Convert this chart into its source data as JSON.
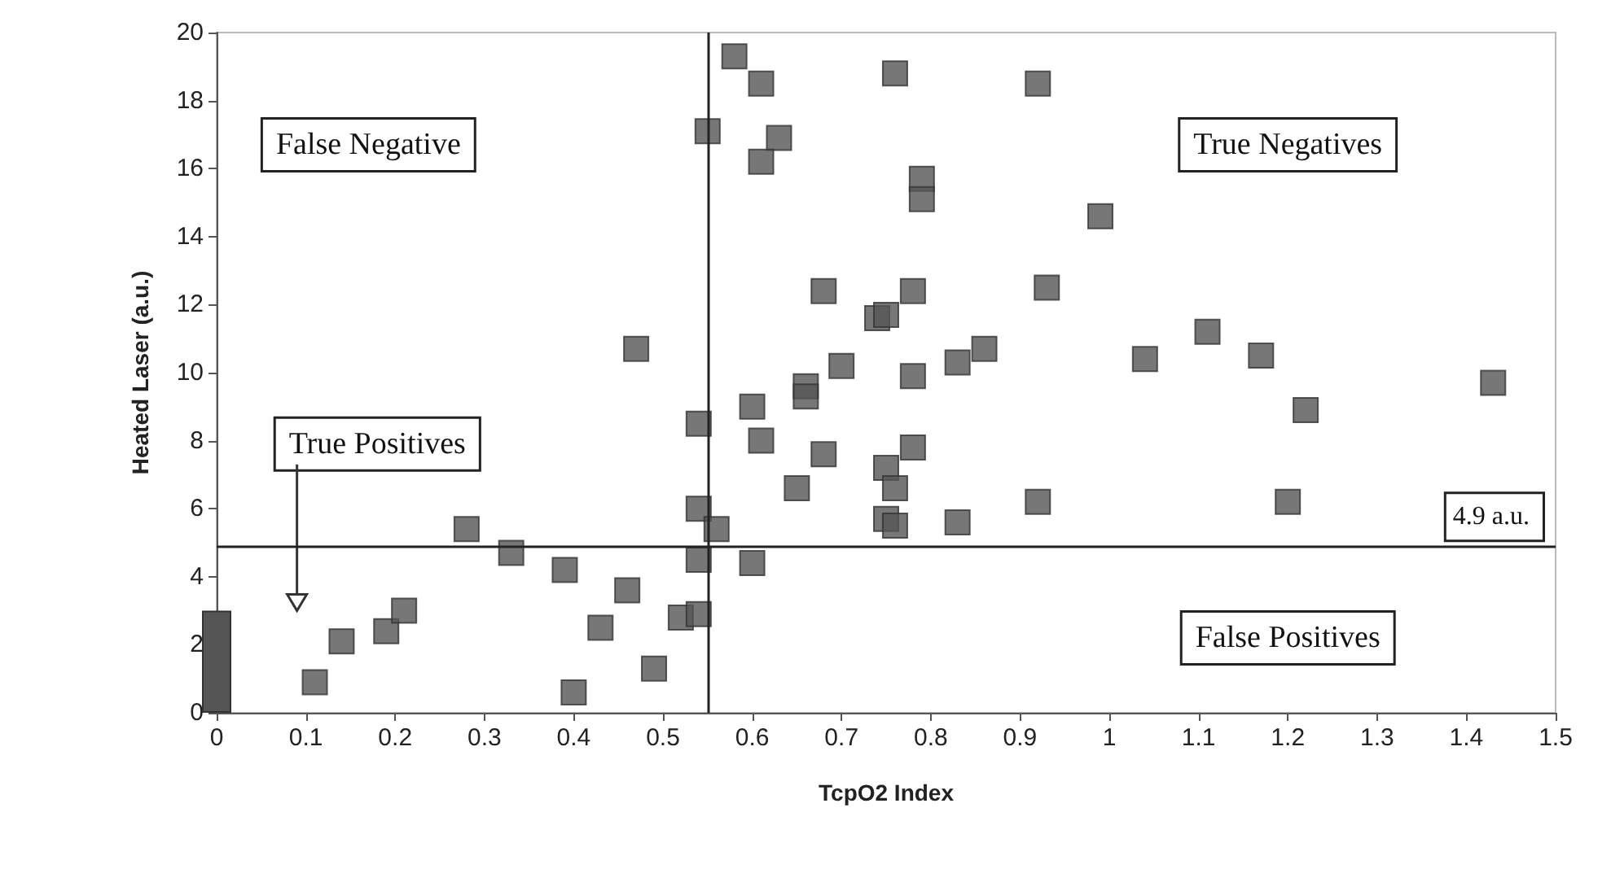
{
  "chart_data": {
    "type": "scatter",
    "xlabel": "TcpO2 Index",
    "ylabel": "Heated Laser (a.u.)",
    "xlim": [
      0,
      1.5
    ],
    "xticks": [
      0,
      0.1,
      0.2,
      0.3,
      0.4,
      0.5,
      0.6,
      0.7,
      0.8,
      0.9,
      1,
      1.1,
      1.2,
      1.3,
      1.4,
      1.5
    ],
    "ylim": [
      0,
      20
    ],
    "yticks": [
      0,
      2,
      4,
      6,
      8,
      10,
      12,
      14,
      16,
      18,
      20
    ],
    "grid": false,
    "marker": "square",
    "series": [
      {
        "type": "bar",
        "color": "#555555",
        "x": [
          0
        ],
        "values": [
          3
        ]
      },
      {
        "color": "#555555",
        "x": [
          0.11,
          0.14,
          0.19,
          0.21,
          0.28,
          0.33,
          0.39,
          0.4,
          0.43,
          0.46,
          0.47,
          0.49,
          0.52,
          0.54,
          0.54,
          0.55,
          0.54,
          0.54,
          0.56,
          0.58,
          0.61,
          0.63,
          0.61,
          0.76,
          0.92,
          0.79,
          0.79,
          0.99,
          0.68,
          0.78,
          0.93,
          0.74,
          0.75,
          0.7,
          0.83,
          0.86,
          1.04,
          0.78,
          0.6,
          0.66,
          0.66,
          0.61,
          0.68,
          0.65,
          0.75,
          0.78,
          0.75,
          0.76,
          0.76,
          0.83,
          0.92,
          0.6,
          1.11,
          1.17,
          1.22,
          1.2,
          1.43
        ],
        "values": [
          0.9,
          2.1,
          2.4,
          3.0,
          5.4,
          4.7,
          4.2,
          0.6,
          2.5,
          3.6,
          10.7,
          1.3,
          2.8,
          2.9,
          8.5,
          17.1,
          6.0,
          4.5,
          5.4,
          19.3,
          18.5,
          16.9,
          16.2,
          18.8,
          18.5,
          15.7,
          15.1,
          14.6,
          12.4,
          12.4,
          12.5,
          11.6,
          11.7,
          10.2,
          10.3,
          10.7,
          10.4,
          9.9,
          9.0,
          9.6,
          9.3,
          8.0,
          7.6,
          6.6,
          7.2,
          7.8,
          5.7,
          5.5,
          6.6,
          5.6,
          6.2,
          4.4,
          11.2,
          10.5,
          8.9,
          6.2,
          9.7
        ]
      }
    ],
    "ref_lines": [
      {
        "axis": "y",
        "value": 4.9,
        "label": "4.9 a.u.",
        "color": "#222222"
      },
      {
        "axis": "x",
        "value": 0.55,
        "color": "#222222"
      }
    ],
    "annotations": [
      {
        "text": "False Negative"
      },
      {
        "text": "True Positives"
      },
      {
        "text": "True Negatives"
      },
      {
        "text": "False Positives"
      }
    ]
  }
}
